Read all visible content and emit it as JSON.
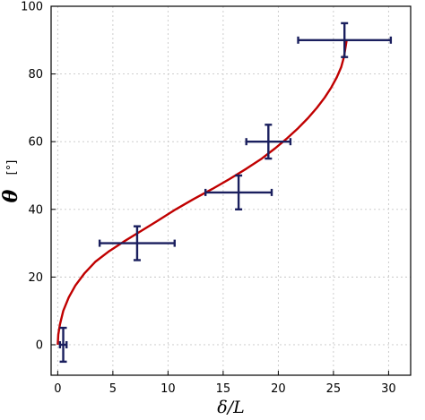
{
  "chart_data": {
    "type": "scatter",
    "xlabel": "δ/L",
    "ylabel_symbol": "θ",
    "ylabel_unit": "[°]",
    "xlim": [
      -0.6,
      32
    ],
    "ylim": [
      -9,
      100
    ],
    "xticks": [
      0,
      5,
      10,
      15,
      20,
      25,
      30
    ],
    "yticks": [
      0,
      20,
      40,
      60,
      80,
      100
    ],
    "grid": true,
    "points": [
      {
        "x": 0.5,
        "y": 0,
        "xerr": 0.3,
        "yerr": 5
      },
      {
        "x": 7.2,
        "y": 30,
        "xerr": 3.4,
        "yerr": 5
      },
      {
        "x": 16.4,
        "y": 45,
        "xerr": 3.0,
        "yerr": 5
      },
      {
        "x": 19.1,
        "y": 60,
        "xerr": 2.0,
        "yerr": 5
      },
      {
        "x": 26.0,
        "y": 90,
        "xerr": 4.2,
        "yerr": 5
      }
    ],
    "fit_curve": {
      "x": [
        0,
        0.05,
        0.2,
        0.5,
        1.0,
        1.6,
        2.4,
        3.4,
        4.6,
        6.0,
        7.5,
        9.0,
        10.7,
        12.3,
        14.0,
        15.6,
        17.1,
        18.5,
        19.7,
        20.8,
        21.8,
        22.7,
        23.5,
        24.2,
        24.8,
        25.3,
        25.7,
        25.95,
        26.1,
        26.2
      ],
      "y": [
        0,
        3,
        6,
        10,
        14,
        17.5,
        21,
        24.5,
        27.5,
        30.5,
        33.5,
        36.5,
        40,
        43,
        46,
        49,
        52,
        55,
        58,
        61,
        64,
        67,
        70,
        73,
        76,
        79,
        82,
        85,
        88,
        90
      ],
      "color": "#c00000"
    },
    "marker_color": "#1a1f5e"
  }
}
